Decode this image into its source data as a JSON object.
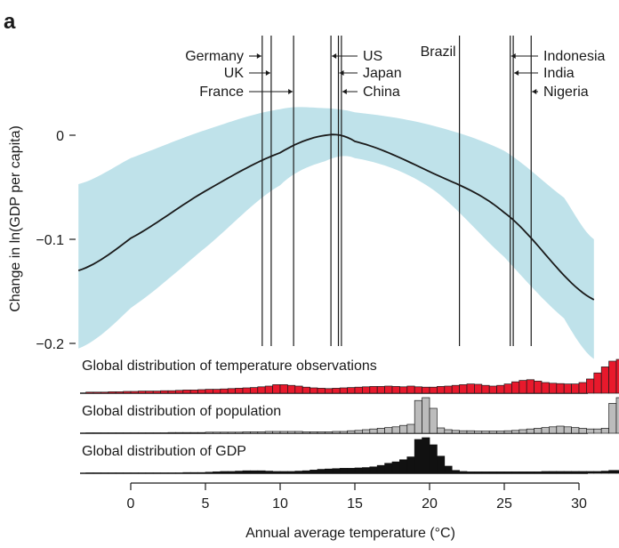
{
  "panel_label": "a",
  "chart_data": {
    "type": "line",
    "title": "",
    "xlabel": "Annual average temperature (°C)",
    "ylabel": "Change in ln(GDP per capita)",
    "xlim": [
      -3.5,
      31
    ],
    "ylim": [
      -0.21,
      0.045
    ],
    "x_ticks": [
      0,
      5,
      10,
      15,
      20,
      25,
      30
    ],
    "x_tick_labels": [
      "0",
      "5",
      "10",
      "15",
      "20",
      "25",
      "30"
    ],
    "y_ticks": [
      0,
      -0.1,
      -0.2
    ],
    "y_tick_labels": [
      "0",
      "−0.1",
      "−0.2"
    ],
    "grid": false,
    "colors": {
      "curve": "#1a1a1a",
      "band": "#bfe2ea",
      "temperature_hist": "#e8192c",
      "population_hist": "#bcbcbc",
      "gdp_hist": "#111111"
    },
    "response_curve": {
      "optimum_x": 13.1,
      "x": [
        -3.5,
        0,
        5,
        10,
        13.1,
        15,
        20,
        25,
        31
      ],
      "y": [
        -0.13,
        -0.099,
        -0.0536,
        -0.0168,
        0,
        -0.0059,
        -0.035,
        -0.0744,
        -0.158
      ]
    },
    "confidence_band": {
      "x": [
        -3.5,
        0,
        5,
        10,
        13,
        15,
        20,
        25,
        29,
        31
      ],
      "upper": [
        -0.047,
        -0.022,
        0.005,
        0.025,
        0.026,
        0.022,
        0.01,
        -0.015,
        -0.06,
        -0.1
      ],
      "lower": [
        -0.205,
        -0.166,
        -0.108,
        -0.048,
        -0.025,
        -0.022,
        -0.05,
        -0.117,
        -0.176,
        -0.215
      ]
    },
    "countries": [
      {
        "name": "Germany",
        "temp": 8.8,
        "label_side": "left"
      },
      {
        "name": "UK",
        "temp": 9.4,
        "label_side": "left"
      },
      {
        "name": "France",
        "temp": 10.9,
        "label_side": "left"
      },
      {
        "name": "US",
        "temp": 13.4,
        "label_side": "right"
      },
      {
        "name": "Japan",
        "temp": 13.9,
        "label_side": "right"
      },
      {
        "name": "China",
        "temp": 14.1,
        "label_side": "right"
      },
      {
        "name": "Brazil",
        "temp": 22.0,
        "label_side": "top"
      },
      {
        "name": "Indonesia",
        "temp": 25.4,
        "label_side": "right"
      },
      {
        "name": "India",
        "temp": 25.6,
        "label_side": "right"
      },
      {
        "name": "Nigeria",
        "temp": 26.8,
        "label_side": "right"
      }
    ],
    "histograms": [
      {
        "name": "Global distribution of temperature observations",
        "bin_start": -3,
        "bin_width": 0.5,
        "values": [
          0.03,
          0.03,
          0.03,
          0.04,
          0.04,
          0.05,
          0.05,
          0.06,
          0.06,
          0.06,
          0.07,
          0.07,
          0.08,
          0.09,
          0.09,
          0.1,
          0.11,
          0.11,
          0.12,
          0.13,
          0.14,
          0.15,
          0.16,
          0.18,
          0.2,
          0.24,
          0.24,
          0.22,
          0.2,
          0.17,
          0.15,
          0.14,
          0.13,
          0.14,
          0.15,
          0.16,
          0.17,
          0.18,
          0.19,
          0.19,
          0.2,
          0.19,
          0.18,
          0.2,
          0.18,
          0.17,
          0.17,
          0.19,
          0.2,
          0.22,
          0.24,
          0.26,
          0.25,
          0.22,
          0.2,
          0.22,
          0.26,
          0.32,
          0.36,
          0.38,
          0.34,
          0.3,
          0.28,
          0.27,
          0.26,
          0.26,
          0.3,
          0.4,
          0.57,
          0.74,
          0.9,
          0.95,
          0.88,
          0.7,
          0.52,
          0.38,
          0.28,
          0.21,
          0.14,
          0.09,
          0.05,
          0.03
        ]
      },
      {
        "name": "Global distribution of population",
        "bin_start": -3,
        "bin_width": 0.5,
        "values": [
          0.01,
          0.01,
          0.01,
          0.01,
          0.01,
          0.01,
          0.01,
          0.01,
          0.01,
          0.01,
          0.01,
          0.02,
          0.02,
          0.02,
          0.02,
          0.02,
          0.03,
          0.03,
          0.03,
          0.03,
          0.03,
          0.04,
          0.04,
          0.04,
          0.05,
          0.05,
          0.05,
          0.05,
          0.05,
          0.04,
          0.04,
          0.04,
          0.04,
          0.05,
          0.05,
          0.07,
          0.08,
          0.1,
          0.12,
          0.14,
          0.16,
          0.18,
          0.22,
          0.25,
          0.92,
          1.0,
          0.7,
          0.15,
          0.1,
          0.08,
          0.07,
          0.07,
          0.06,
          0.06,
          0.06,
          0.06,
          0.07,
          0.08,
          0.1,
          0.12,
          0.14,
          0.16,
          0.18,
          0.2,
          0.18,
          0.16,
          0.14,
          0.12,
          0.12,
          0.14,
          0.84,
          1.0,
          0.2,
          0.1,
          0.08,
          0.06,
          0.05,
          0.04,
          0.03,
          0.02,
          0.02,
          0.01
        ]
      },
      {
        "name": "Global distribution of GDP",
        "bin_start": -3,
        "bin_width": 0.5,
        "values": [
          0.01,
          0.01,
          0.01,
          0.01,
          0.01,
          0.01,
          0.01,
          0.01,
          0.01,
          0.01,
          0.01,
          0.01,
          0.01,
          0.02,
          0.02,
          0.02,
          0.03,
          0.04,
          0.05,
          0.05,
          0.06,
          0.07,
          0.07,
          0.07,
          0.06,
          0.05,
          0.05,
          0.05,
          0.06,
          0.07,
          0.09,
          0.11,
          0.12,
          0.13,
          0.14,
          0.14,
          0.15,
          0.16,
          0.18,
          0.22,
          0.28,
          0.32,
          0.38,
          0.46,
          0.95,
          1.0,
          0.8,
          0.48,
          0.2,
          0.08,
          0.05,
          0.04,
          0.04,
          0.04,
          0.04,
          0.04,
          0.04,
          0.04,
          0.04,
          0.04,
          0.04,
          0.05,
          0.05,
          0.05,
          0.05,
          0.05,
          0.05,
          0.05,
          0.05,
          0.06,
          0.08,
          0.08,
          0.06,
          0.04,
          0.03,
          0.02,
          0.02,
          0.01,
          0.01,
          0.01,
          0.01,
          0.01
        ]
      }
    ]
  }
}
